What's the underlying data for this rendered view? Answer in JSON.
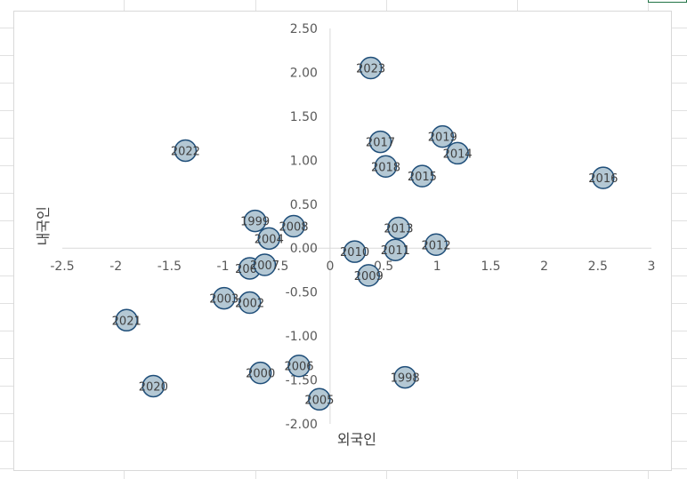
{
  "chart_data": {
    "type": "scatter",
    "title": "",
    "xlabel": "외국인",
    "ylabel": "내국인",
    "xlim": [
      -2.5,
      3
    ],
    "ylim": [
      -2.0,
      2.5
    ],
    "x_ticks": [
      "-2.5",
      "-2",
      "-1.5",
      "-1",
      "-0.5",
      "0",
      "0.5",
      "1",
      "1.5",
      "2",
      "2.5",
      "3"
    ],
    "y_ticks": [
      "2.50",
      "2.00",
      "1.50",
      "1.00",
      "0.50",
      "0.00",
      "-0.50",
      "-1.00",
      "-1.50",
      "-2.00"
    ],
    "grid": false,
    "legend": "none",
    "marker_fill": "#b4c8d4",
    "marker_edge": "#1f4e79",
    "series": [
      {
        "points": [
          {
            "label": "1998",
            "x": 0.7,
            "y": -1.47
          },
          {
            "label": "1999",
            "x": -0.7,
            "y": 0.31
          },
          {
            "label": "2000",
            "x": -0.65,
            "y": -1.42
          },
          {
            "label": "2001",
            "x": -0.75,
            "y": -0.23
          },
          {
            "label": "2002",
            "x": -0.75,
            "y": -0.62
          },
          {
            "label": "2003",
            "x": -0.99,
            "y": -0.57
          },
          {
            "label": "2004",
            "x": -0.57,
            "y": 0.11
          },
          {
            "label": "2005",
            "x": -0.1,
            "y": -1.72
          },
          {
            "label": "2006",
            "x": -0.29,
            "y": -1.34
          },
          {
            "label": "2007",
            "x": -0.61,
            "y": -0.19
          },
          {
            "label": "2008",
            "x": -0.34,
            "y": 0.25
          },
          {
            "label": "2009",
            "x": 0.36,
            "y": -0.31
          },
          {
            "label": "2010",
            "x": 0.23,
            "y": -0.04
          },
          {
            "label": "2011",
            "x": 0.61,
            "y": -0.02
          },
          {
            "label": "2012",
            "x": 0.99,
            "y": 0.04
          },
          {
            "label": "2013",
            "x": 0.64,
            "y": 0.23
          },
          {
            "label": "2014",
            "x": 1.19,
            "y": 1.08
          },
          {
            "label": "2015",
            "x": 0.86,
            "y": 0.82
          },
          {
            "label": "2016",
            "x": 2.55,
            "y": 0.8
          },
          {
            "label": "2017",
            "x": 0.47,
            "y": 1.21
          },
          {
            "label": "2018",
            "x": 0.52,
            "y": 0.93
          },
          {
            "label": "2019",
            "x": 1.05,
            "y": 1.27
          },
          {
            "label": "2020",
            "x": -1.65,
            "y": -1.57
          },
          {
            "label": "2021",
            "x": -1.9,
            "y": -0.82
          },
          {
            "label": "2022",
            "x": -1.35,
            "y": 1.11
          },
          {
            "label": "2023",
            "x": 0.38,
            "y": 2.05
          }
        ]
      }
    ]
  }
}
